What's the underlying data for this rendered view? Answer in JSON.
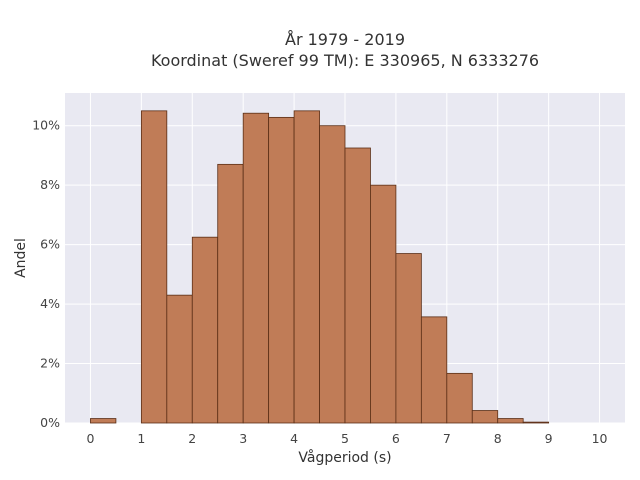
{
  "chart_data": {
    "type": "bar",
    "title_line1": "År 1979 - 2019",
    "title_line2": "Koordinat (Sweref 99 TM): E 330965, N 6333276",
    "xlabel": "Vågperiod (s)",
    "ylabel": "Andel",
    "bin_width": 0.5,
    "bin_starts": [
      0,
      0.5,
      1,
      1.5,
      2,
      2.5,
      3,
      3.5,
      4,
      4.5,
      5,
      5.5,
      6,
      6.5,
      7,
      7.5,
      8,
      8.5,
      9,
      9.5
    ],
    "values": [
      0.15,
      0,
      10.5,
      4.3,
      6.25,
      8.7,
      10.42,
      10.28,
      10.5,
      10.0,
      9.25,
      8.0,
      5.7,
      3.57,
      1.67,
      0.42,
      0.15,
      0.03,
      0,
      0
    ],
    "xlim": [
      -0.5,
      10.5
    ],
    "ylim": [
      0,
      11.1
    ],
    "x_ticks": [
      0,
      1,
      2,
      3,
      4,
      5,
      6,
      7,
      8,
      9,
      10
    ],
    "x_tick_labels": [
      "0",
      "1",
      "2",
      "3",
      "4",
      "5",
      "6",
      "7",
      "8",
      "9",
      "10"
    ],
    "y_ticks": [
      0,
      2,
      4,
      6,
      8,
      10
    ],
    "y_tick_labels": [
      "0%",
      "2%",
      "4%",
      "6%",
      "8%",
      "10%"
    ],
    "grid": true,
    "bar_color": "#c07c57",
    "bar_edge_color": "#5a2e16",
    "plot_bg_color": "#e9e9f2"
  }
}
